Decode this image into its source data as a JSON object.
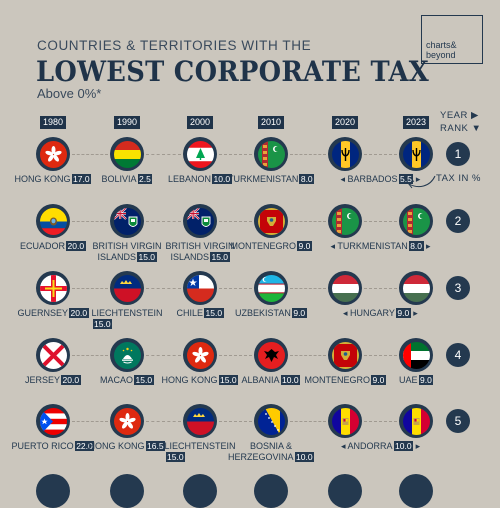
{
  "logo": {
    "line1": "charts&",
    "line2": "beyond"
  },
  "title": {
    "pre": "COUNTRIES & TERRITORIES WITH THE",
    "main": "LOWEST CORPORATE TAX",
    "sub": "Above 0%*"
  },
  "legend": {
    "year": "YEAR ▶",
    "rank": "RANK ▼",
    "tax": "TAX IN %"
  },
  "colors": {
    "background": "#cbc6bd",
    "navy": "#1f3349"
  },
  "chart_data": {
    "type": "table",
    "years": [
      "1980",
      "1990",
      "2000",
      "2010",
      "2020",
      "2023"
    ],
    "ranks": [
      "1",
      "2",
      "3",
      "4",
      "5"
    ],
    "rows": [
      [
        {
          "country": "HONG KONG",
          "tax": "17.0",
          "flag": "hong-kong"
        },
        {
          "country": "BOLIVIA",
          "tax": "2.5",
          "flag": "bolivia"
        },
        {
          "country": "LEBANON",
          "tax": "10.0",
          "flag": "lebanon"
        },
        {
          "country": "TURKMENISTAN",
          "tax": "8.0",
          "flag": "turkmenistan"
        },
        {
          "country": "BARBADOS",
          "tax": "5.5",
          "flag": "barbados",
          "span_to_next": true
        },
        {
          "flag": "barbados"
        }
      ],
      [
        {
          "country": "ECUADOR",
          "tax": "20.0",
          "flag": "ecuador"
        },
        {
          "country": "BRITISH VIRGIN",
          "country2": "ISLANDS",
          "tax": "15.0",
          "flag": "british-virgin-islands"
        },
        {
          "country": "BRITISH VIRGIN",
          "country2": "ISLANDS",
          "tax": "15.0",
          "flag": "british-virgin-islands"
        },
        {
          "country": "MONTENEGRO",
          "tax": "9.0",
          "flag": "montenegro"
        },
        {
          "country": "TURKMENISTAN",
          "tax": "8.0",
          "flag": "turkmenistan",
          "span_to_next": true
        },
        {
          "flag": "turkmenistan"
        }
      ],
      [
        {
          "country": "GUERNSEY",
          "tax": "20.0",
          "flag": "guernsey"
        },
        {
          "country": "LIECHTENSTEIN",
          "tax": "15.0",
          "flag": "liechtenstein",
          "value_below": true
        },
        {
          "country": "CHILE",
          "tax": "15.0",
          "flag": "chile"
        },
        {
          "country": "UZBEKISTAN",
          "tax": "9.0",
          "flag": "uzbekistan"
        },
        {
          "country": "HUNGARY",
          "tax": "9.0",
          "flag": "hungary",
          "span_to_next": true
        },
        {
          "flag": "hungary"
        }
      ],
      [
        {
          "country": "JERSEY",
          "tax": "20.0",
          "flag": "jersey"
        },
        {
          "country": "MACAO",
          "tax": "15.0",
          "flag": "macao"
        },
        {
          "country": "HONG KONG",
          "tax": "15.0",
          "flag": "hong-kong"
        },
        {
          "country": "ALBANIA",
          "tax": "10.0",
          "flag": "albania"
        },
        {
          "country": "MONTENEGRO",
          "tax": "9.0",
          "flag": "montenegro"
        },
        {
          "country": "UAE",
          "tax": "9.0",
          "flag": "uae"
        }
      ],
      [
        {
          "country": "PUERTO RICO",
          "tax": "22.0",
          "flag": "puerto-rico"
        },
        {
          "country": "HONG KONG",
          "tax": "16.5",
          "flag": "hong-kong"
        },
        {
          "country": "LIECHTENSTEIN",
          "tax": "15.0",
          "flag": "liechtenstein",
          "value_below": true
        },
        {
          "country": "BOSNIA &",
          "country2": "HERZEGOVINA",
          "tax": "10.0",
          "flag": "bosnia"
        },
        {
          "country": "ANDORRA",
          "tax": "10.0",
          "flag": "andorra",
          "span_to_next": true
        },
        {
          "flag": "andorra"
        }
      ]
    ]
  }
}
